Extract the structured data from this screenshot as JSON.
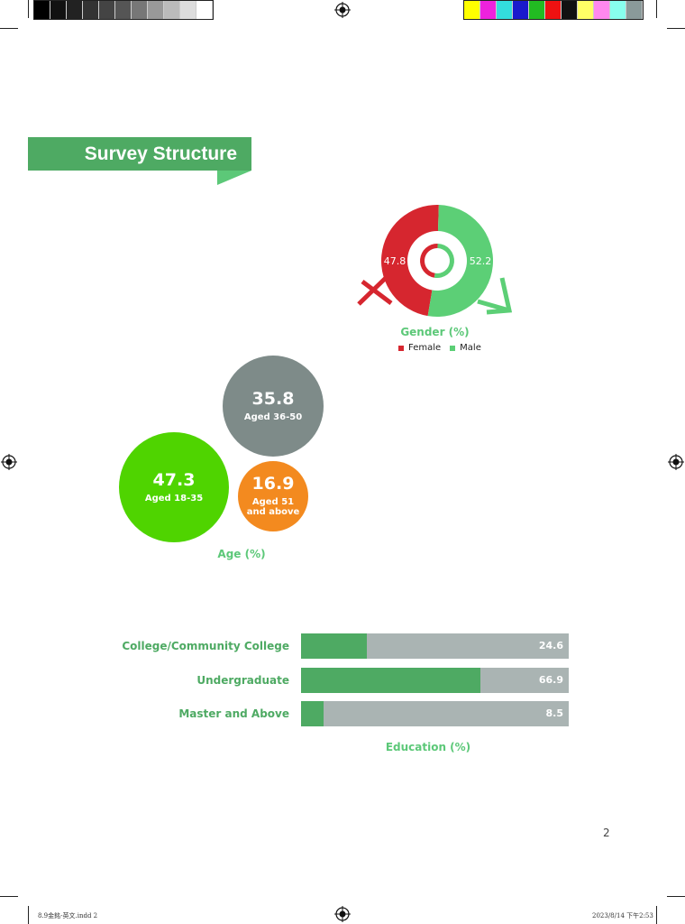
{
  "section_title": "Survey Structure",
  "page_number": "2",
  "slug": {
    "file": "8.9金銘-英文.indd   2",
    "timestamp": "2023/8/14   下午2:53"
  },
  "colors": {
    "accent_green": "#4eaa63",
    "title_green": "#5cc878",
    "female_red": "#d6262f",
    "male_green": "#5ccf76",
    "age_18_35": "#4fd400",
    "age_36_50": "#7e8b89",
    "age_51_up": "#f38a1f",
    "bar_track": "#aab4b3"
  },
  "print_marks": {
    "gray_swatches": [
      "#000000",
      "#111111",
      "#222222",
      "#333333",
      "#444444",
      "#555555",
      "#777777",
      "#999999",
      "#bbbbbb",
      "#dddddd",
      "#ffffff"
    ],
    "color_swatches": [
      "#ffff00",
      "#ee22dd",
      "#33dddd",
      "#1a1acc",
      "#22bb22",
      "#ee1111",
      "#111111",
      "#ffff66",
      "#ff88ee",
      "#88ffee",
      "#8a9a9a"
    ]
  },
  "chart_data": [
    {
      "type": "pie",
      "title": "Gender (%)",
      "categories": [
        "Female",
        "Male"
      ],
      "values": [
        47.8,
        52.2
      ],
      "legend": "bottom"
    },
    {
      "type": "bubble",
      "title": "Age (%)",
      "categories": [
        "Aged 18-35",
        "Aged 36-50",
        "Aged 51 and above"
      ],
      "values": [
        47.3,
        35.8,
        16.9
      ]
    },
    {
      "type": "bar",
      "orientation": "horizontal",
      "title": "Education (%)",
      "categories": [
        "College/Community College",
        "Undergraduate",
        "Master and Above"
      ],
      "values": [
        24.6,
        66.9,
        8.5
      ],
      "xlim": [
        0,
        100
      ]
    }
  ]
}
